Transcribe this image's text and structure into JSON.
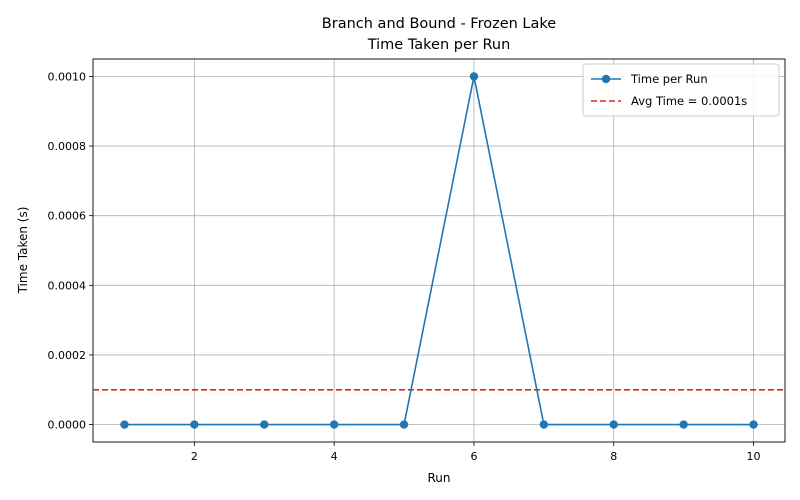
{
  "chart_data": {
    "type": "line",
    "title": "Branch and Bound - Frozen Lake",
    "subtitle": "Time Taken per Run",
    "xlabel": "Run",
    "ylabel": "Time Taken (s)",
    "xlim": [
      0.55,
      10.45
    ],
    "ylim": [
      -5e-05,
      0.00105
    ],
    "xticks": [
      2,
      4,
      6,
      8,
      10
    ],
    "xtick_labels": [
      "2",
      "4",
      "6",
      "8",
      "10"
    ],
    "yticks": [
      0,
      0.0002,
      0.0004,
      0.0006,
      0.0008,
      0.001
    ],
    "ytick_labels": [
      "0.0000",
      "0.0002",
      "0.0004",
      "0.0006",
      "0.0008",
      "0.0010"
    ],
    "grid": true,
    "legend_position": "top-right",
    "series": [
      {
        "name": "Time per Run",
        "color": "#1f77b4",
        "marker": "circle",
        "x": [
          1,
          2,
          3,
          4,
          5,
          6,
          7,
          8,
          9,
          10
        ],
        "values": [
          0,
          0,
          0,
          0,
          0,
          0.001,
          0,
          0,
          0,
          0
        ]
      }
    ],
    "reference_lines": [
      {
        "name": "Avg Time = 0.0001s",
        "orientation": "horizontal",
        "y": 0.0001,
        "color": "#d62728",
        "style": "dashed"
      }
    ]
  }
}
